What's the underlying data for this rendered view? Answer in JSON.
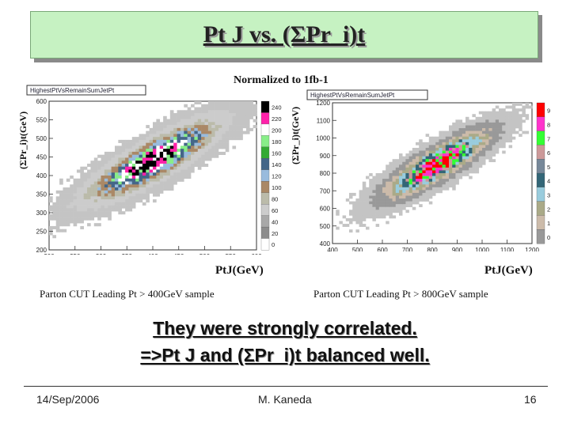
{
  "slide": {
    "title": "Pt J vs. (ΣPr_i)t",
    "normalization_note": "Normalized to 1fb-1",
    "conclusion_line1": "They were strongly correlated.",
    "conclusion_line2": "=>Pt J and (ΣPr_i)t balanced well.",
    "footer": {
      "date": "14/Sep/2006",
      "author": "M. Kaneda",
      "page": "16"
    }
  },
  "plots": [
    {
      "histogram_title": "HighestPtVsRemainSumJetPt",
      "ylabel": "(ΣPr_i)t(GeV)",
      "xlabel": "PtJ(GeV)",
      "caption": "Parton CUT Leading Pt > 400GeV sample",
      "x_ticks": [
        "200",
        "250",
        "300",
        "350",
        "400",
        "450",
        "500",
        "550",
        "600"
      ],
      "y_ticks": [
        "600",
        "550",
        "500",
        "450",
        "400",
        "350",
        "300",
        "250",
        "200"
      ],
      "palette_labels": [
        "240",
        "220",
        "200",
        "180",
        "160",
        "140",
        "120",
        "100",
        "80",
        "60",
        "40",
        "20",
        "0"
      ]
    },
    {
      "histogram_title": "HighestPtVsRemainSumJetPt",
      "ylabel": "(ΣPr_i)t(GeV)",
      "xlabel": "PtJ(GeV)",
      "caption": "Parton CUT Leading Pt > 800GeV sample",
      "x_ticks": [
        "400",
        "500",
        "600",
        "700",
        "800",
        "900",
        "1000",
        "1100",
        "1200"
      ],
      "y_ticks": [
        "1200",
        "1100",
        "1000",
        "900",
        "800",
        "700",
        "600",
        "500",
        "400"
      ],
      "palette_labels": [
        "9",
        "8",
        "7",
        "6",
        "5",
        "4",
        "3",
        "2",
        "1",
        "0"
      ]
    }
  ],
  "chart_data": [
    {
      "type": "heatmap",
      "title": "HighestPtVsRemainSumJetPt",
      "xlabel": "PtJ(GeV)",
      "ylabel": "(ΣPr_i)t(GeV)",
      "xlim": [
        200,
        600
      ],
      "ylim": [
        200,
        600
      ],
      "zlim": [
        0,
        240
      ],
      "peak": {
        "x": 400,
        "y": 440,
        "value": 240
      },
      "spread": {
        "x": 70,
        "y": 60,
        "correlation": 0.85
      }
    },
    {
      "type": "heatmap",
      "title": "HighestPtVsRemainSumJetPt",
      "xlabel": "PtJ(GeV)",
      "ylabel": "(ΣPr_i)t(GeV)",
      "xlim": [
        400,
        1200
      ],
      "ylim": [
        400,
        1200
      ],
      "zlim": [
        0,
        9
      ],
      "peak": {
        "x": 820,
        "y": 850,
        "value": 9
      },
      "spread": {
        "x": 120,
        "y": 110,
        "correlation": 0.85
      }
    }
  ],
  "colors": {
    "title_bg": "#c6f2c2",
    "palette_400": [
      "#000000",
      "#ff22aa",
      "#ffffff",
      "#88ee88",
      "#33aa33",
      "#446688",
      "#99bbdd",
      "#aa8866",
      "#bbbbaa",
      "#cccccc",
      "#a8a8a8",
      "#8c8c8c",
      "#ffffff"
    ],
    "palette_800": [
      "#ff0000",
      "#ff33cc",
      "#33ff33",
      "#cc9999",
      "#778899",
      "#336677",
      "#99ccdd",
      "#aaaa88",
      "#ccbbaa",
      "#999999"
    ]
  }
}
